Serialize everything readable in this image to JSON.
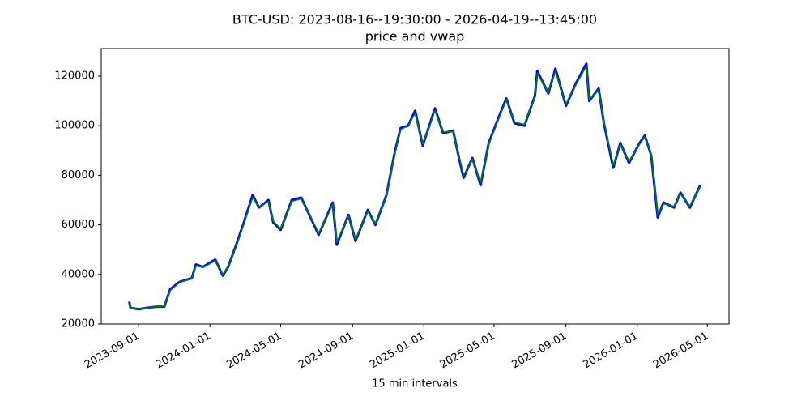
{
  "chart_data": {
    "type": "line",
    "title": "BTC-USD: 2023-08-16--19:30:00 - 2026-04-19--13:45:00",
    "subtitle": "price and vwap",
    "x_label": "15 min intervals",
    "x": [
      "2023-08-16",
      "2023-08-18",
      "2023-09-01",
      "2023-09-15",
      "2023-10-01",
      "2023-10-15",
      "2023-10-25",
      "2023-11-10",
      "2023-12-01",
      "2023-12-08",
      "2023-12-20",
      "2024-01-10",
      "2024-01-23",
      "2024-02-01",
      "2024-02-15",
      "2024-02-28",
      "2024-03-14",
      "2024-03-25",
      "2024-04-10",
      "2024-04-18",
      "2024-05-01",
      "2024-05-20",
      "2024-06-05",
      "2024-06-25",
      "2024-07-05",
      "2024-07-29",
      "2024-08-05",
      "2024-08-25",
      "2024-09-06",
      "2024-09-27",
      "2024-10-10",
      "2024-10-29",
      "2024-11-12",
      "2024-11-22",
      "2024-12-05",
      "2024-12-17",
      "2024-12-30",
      "2025-01-20",
      "2025-02-03",
      "2025-02-20",
      "2025-03-03",
      "2025-03-10",
      "2025-03-25",
      "2025-04-08",
      "2025-04-22",
      "2025-05-10",
      "2025-05-22",
      "2025-06-05",
      "2025-06-22",
      "2025-07-10",
      "2025-07-14",
      "2025-08-02",
      "2025-08-14",
      "2025-09-01",
      "2025-09-18",
      "2025-10-06",
      "2025-10-11",
      "2025-10-27",
      "2025-11-05",
      "2025-11-21",
      "2025-12-03",
      "2025-12-18",
      "2026-01-05",
      "2026-01-14",
      "2026-01-25",
      "2026-02-05",
      "2026-02-15",
      "2026-03-05",
      "2026-03-16",
      "2026-04-01",
      "2026-04-19"
    ],
    "series": [
      {
        "name": "price",
        "color": "#0000ff",
        "values": [
          29000,
          26500,
          26000,
          26500,
          27000,
          27000,
          34000,
          37000,
          38500,
          44000,
          43000,
          46000,
          39500,
          43000,
          52000,
          61000,
          72000,
          67000,
          70000,
          61000,
          58000,
          70000,
          71000,
          61000,
          56000,
          69000,
          52000,
          64000,
          53500,
          66000,
          60000,
          72000,
          89000,
          99000,
          100000,
          106000,
          92000,
          107000,
          97000,
          98000,
          86000,
          79000,
          87000,
          76000,
          93000,
          104000,
          111000,
          101000,
          100000,
          112000,
          122000,
          113000,
          123000,
          108000,
          117000,
          125000,
          110000,
          115000,
          101000,
          83000,
          93000,
          85000,
          93000,
          96000,
          88000,
          63000,
          69000,
          67000,
          73000,
          67000,
          76000
        ]
      },
      {
        "name": "vwap",
        "color": "#008000",
        "values": [
          28500,
          26600,
          26100,
          26500,
          27000,
          27100,
          33500,
          36800,
          38400,
          43500,
          42800,
          45500,
          40000,
          43000,
          51500,
          60500,
          71000,
          67200,
          69500,
          61500,
          58500,
          69500,
          70500,
          61500,
          56500,
          68500,
          53000,
          63500,
          54000,
          65500,
          60500,
          71500,
          88500,
          98500,
          100000,
          105000,
          92500,
          106000,
          97500,
          97500,
          86500,
          80000,
          86500,
          77000,
          92500,
          103500,
          110500,
          101500,
          100500,
          111500,
          121000,
          113500,
          122000,
          108500,
          116500,
          124000,
          110500,
          114500,
          101500,
          84000,
          92500,
          85500,
          92500,
          95500,
          88500,
          64000,
          68500,
          67500,
          72500,
          67500,
          75500
        ]
      }
    ],
    "xlim": [
      "2023-06-29",
      "2026-06-07"
    ],
    "xticks": [
      "2023-09-01",
      "2024-01-01",
      "2024-05-01",
      "2024-09-01",
      "2025-01-01",
      "2025-05-01",
      "2025-09-01",
      "2026-01-01",
      "2026-05-01"
    ],
    "ylim": [
      20000,
      131100
    ],
    "yticks": [
      20000,
      40000,
      60000,
      80000,
      100000,
      120000
    ]
  }
}
